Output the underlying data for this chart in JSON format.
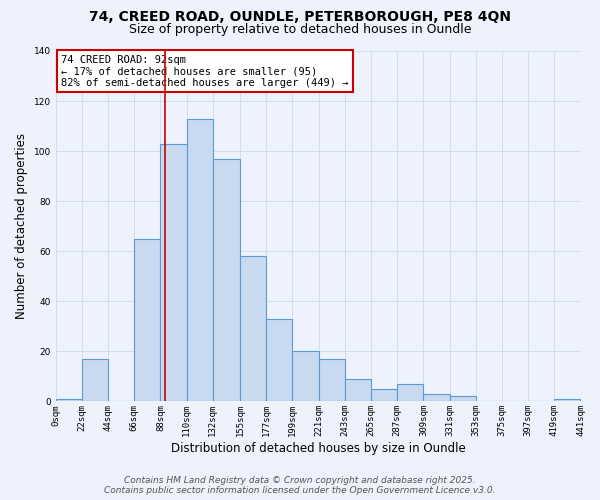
{
  "title1": "74, CREED ROAD, OUNDLE, PETERBOROUGH, PE8 4QN",
  "title2": "Size of property relative to detached houses in Oundle",
  "xlabel": "Distribution of detached houses by size in Oundle",
  "ylabel": "Number of detached properties",
  "bin_edges": [
    0,
    22,
    44,
    66,
    88,
    110,
    132,
    155,
    177,
    199,
    221,
    243,
    265,
    287,
    309,
    331,
    353,
    375,
    397,
    419,
    441
  ],
  "bin_counts": [
    1,
    17,
    0,
    65,
    103,
    113,
    97,
    58,
    33,
    20,
    17,
    9,
    5,
    7,
    3,
    2,
    0,
    0,
    0,
    1
  ],
  "bar_facecolor": "#c8d9f0",
  "bar_edgecolor": "#5b9bd5",
  "bar_linewidth": 0.8,
  "vline_x": 92,
  "vline_color": "#cc0000",
  "vline_lw": 1.2,
  "annotation_title": "74 CREED ROAD: 92sqm",
  "annotation_line1": "← 17% of detached houses are smaller (95)",
  "annotation_line2": "82% of semi-detached houses are larger (449) →",
  "annotation_box_color": "#ffffff",
  "annotation_box_edge": "#cc0000",
  "ylim": [
    0,
    140
  ],
  "xlim": [
    0,
    441
  ],
  "tick_labels": [
    "0sqm",
    "22sqm",
    "44sqm",
    "66sqm",
    "88sqm",
    "110sqm",
    "132sqm",
    "155sqm",
    "177sqm",
    "199sqm",
    "221sqm",
    "243sqm",
    "265sqm",
    "287sqm",
    "309sqm",
    "331sqm",
    "353sqm",
    "375sqm",
    "397sqm",
    "419sqm",
    "441sqm"
  ],
  "tick_positions": [
    0,
    22,
    44,
    66,
    88,
    110,
    132,
    155,
    177,
    199,
    221,
    243,
    265,
    287,
    309,
    331,
    353,
    375,
    397,
    419,
    441
  ],
  "footer1": "Contains HM Land Registry data © Crown copyright and database right 2025.",
  "footer2": "Contains public sector information licensed under the Open Government Licence v3.0.",
  "background_color": "#eef2fc",
  "grid_color": "#d0d8ee",
  "title_fontsize": 10,
  "subtitle_fontsize": 9,
  "axis_label_fontsize": 8.5,
  "tick_fontsize": 6.5,
  "footer_fontsize": 6.5,
  "annot_fontsize": 7.5
}
